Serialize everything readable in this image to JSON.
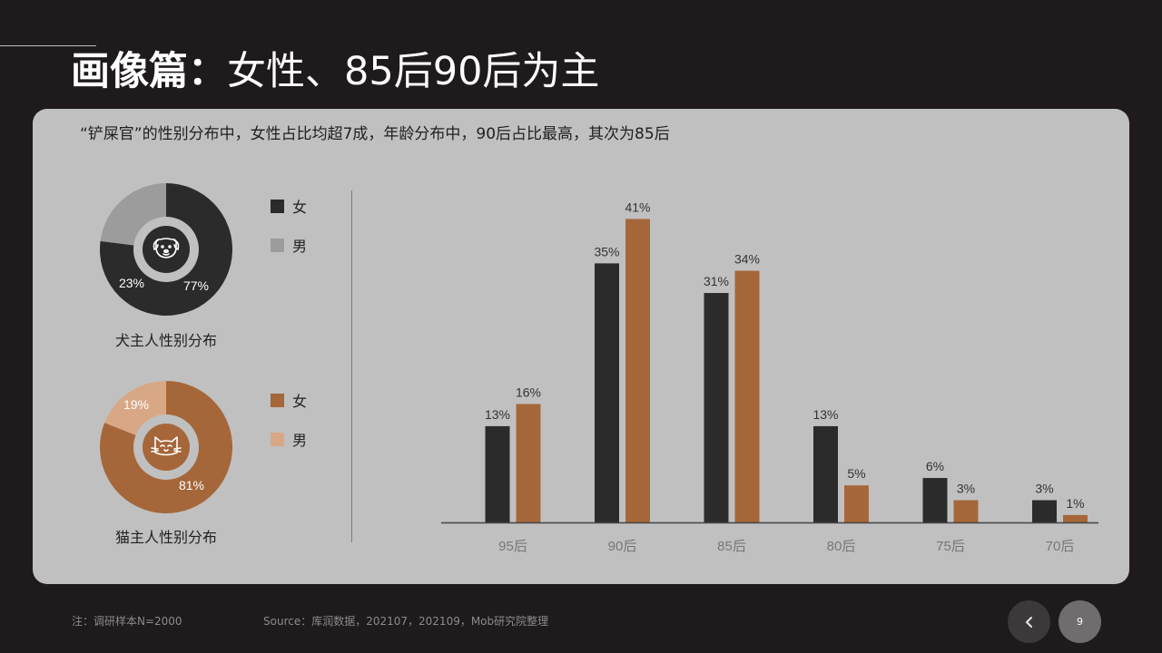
{
  "slide": {
    "title_bold": "画像篇：",
    "title_rest": "女性、85后90后为主",
    "subtitle": "“铲屎官”的性别分布中，女性占比均超7成，年龄分布中，90后占比最高，其次为85后"
  },
  "dog_donut": {
    "caption": "犬主人性别分布",
    "icon": "dog-face-icon",
    "female_value": 77,
    "male_value": 23,
    "female_label": "77%",
    "male_label": "23%",
    "female_color": "#2c2b2b",
    "male_color": "#9c9c9c",
    "legend": [
      {
        "label": "女",
        "color": "#2c2b2b"
      },
      {
        "label": "男",
        "color": "#9c9c9c"
      }
    ]
  },
  "cat_donut": {
    "caption": "猫主人性别分布",
    "icon": "cat-face-icon",
    "female_value": 81,
    "male_value": 19,
    "female_label": "81%",
    "male_label": "19%",
    "female_color": "#a5673a",
    "male_color": "#d8a886",
    "legend": [
      {
        "label": "女",
        "color": "#a5673a"
      },
      {
        "label": "男",
        "color": "#d8a886"
      }
    ]
  },
  "chart_data": {
    "type": "bar",
    "categories": [
      "95后",
      "90后",
      "85后",
      "80后",
      "75后",
      "70后"
    ],
    "series": [
      {
        "values": [
          13,
          35,
          31,
          13,
          6,
          3
        ],
        "labels": [
          "13%",
          "35%",
          "31%",
          "13%",
          "6%",
          "3%"
        ],
        "color": "#2c2b2b"
      },
      {
        "values": [
          16,
          41,
          34,
          5,
          3,
          1
        ],
        "labels": [
          "16%",
          "41%",
          "34%",
          "5%",
          "3%",
          "1%"
        ],
        "color": "#a5673a"
      }
    ],
    "ylim": [
      0,
      45
    ],
    "grid": false,
    "legend": "none"
  },
  "footer": {
    "note": "注：调研样本N=2000",
    "source": "Source：库润数据，202107，202109，Mob研究院整理",
    "page_number": "9"
  },
  "nav": {
    "prev_icon": "chevron-left-icon"
  }
}
